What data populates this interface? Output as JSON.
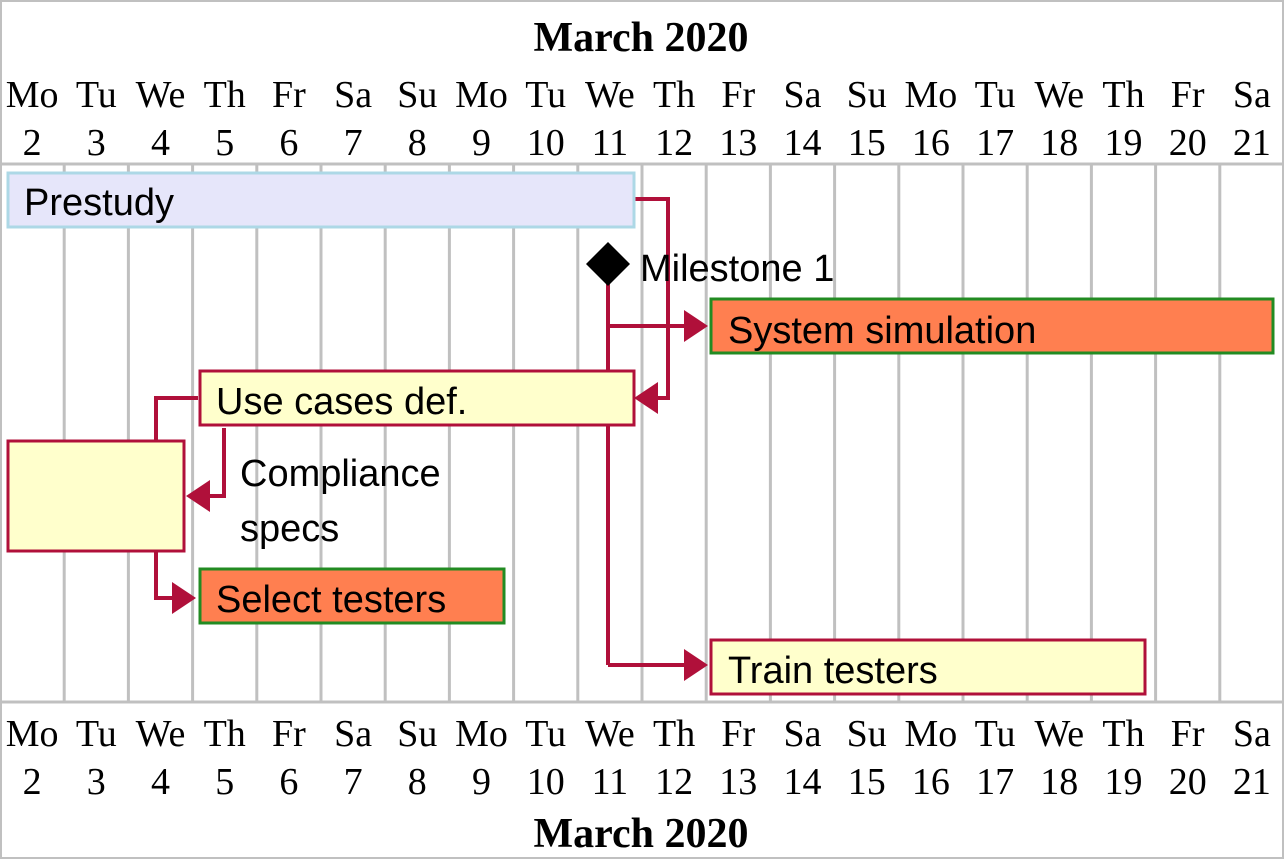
{
  "header": {
    "month_label": "March 2020"
  },
  "footer": {
    "month_label": "March 2020"
  },
  "days": [
    {
      "name": "Mo",
      "num": "2"
    },
    {
      "name": "Tu",
      "num": "3"
    },
    {
      "name": "We",
      "num": "4"
    },
    {
      "name": "Th",
      "num": "5"
    },
    {
      "name": "Fr",
      "num": "6"
    },
    {
      "name": "Sa",
      "num": "7"
    },
    {
      "name": "Su",
      "num": "8"
    },
    {
      "name": "Mo",
      "num": "9"
    },
    {
      "name": "Tu",
      "num": "10"
    },
    {
      "name": "We",
      "num": "11"
    },
    {
      "name": "Th",
      "num": "12"
    },
    {
      "name": "Fr",
      "num": "13"
    },
    {
      "name": "Sa",
      "num": "14"
    },
    {
      "name": "Su",
      "num": "15"
    },
    {
      "name": "Mo",
      "num": "16"
    },
    {
      "name": "Tu",
      "num": "17"
    },
    {
      "name": "We",
      "num": "18"
    },
    {
      "name": "Th",
      "num": "19"
    },
    {
      "name": "Fr",
      "num": "20"
    },
    {
      "name": "Sa",
      "num": "21"
    }
  ],
  "tasks": [
    {
      "id": "prestudy",
      "label": "Prestudy",
      "fill": "#e6e6fa",
      "stroke": "#add8e6"
    },
    {
      "id": "milestone1",
      "label": "Milestone 1",
      "fill": "#000000",
      "stroke": "#000000"
    },
    {
      "id": "system-simulation",
      "label": "System simulation",
      "fill": "#ff7f50",
      "stroke": "#228b22"
    },
    {
      "id": "use-cases",
      "label": "Use cases def.",
      "fill": "#ffffcc",
      "stroke": "#b0103a"
    },
    {
      "id": "compliance-specs",
      "label": "Compliance specs",
      "label_lines": [
        "Compliance",
        "specs"
      ],
      "fill": "#ffffcc",
      "stroke": "#b0103a"
    },
    {
      "id": "select-testers",
      "label": "Select testers",
      "fill": "#ff7f50",
      "stroke": "#228b22"
    },
    {
      "id": "train-testers",
      "label": "Train testers",
      "fill": "#ffffcc",
      "stroke": "#b0103a"
    }
  ],
  "colors": {
    "grid": "#c0c0c0",
    "dependency": "#b0103a",
    "frame": "#c0c0c0"
  }
}
